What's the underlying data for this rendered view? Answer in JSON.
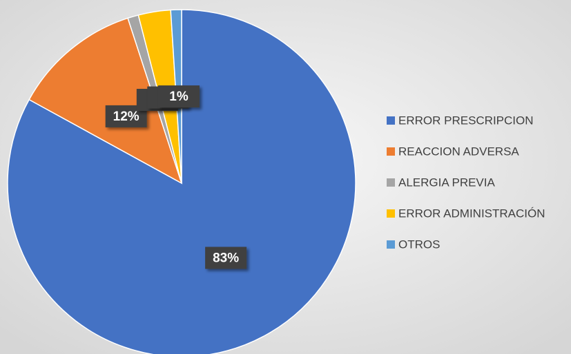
{
  "chart_data": {
    "type": "pie",
    "categories": [
      "ERROR PRESCRIPCION",
      "REACCION ADVERSA",
      "ALERGIA PREVIA",
      "ERROR ADMINISTRACIÓN",
      "OTROS"
    ],
    "values": [
      83,
      12,
      1,
      3,
      1
    ],
    "value_labels": [
      "83%",
      "12%",
      "1%",
      "3%",
      "1%"
    ],
    "colors": [
      "#4472c4",
      "#ed7d31",
      "#a5a5a5",
      "#ffc000",
      "#5b9bd5"
    ],
    "legend": "right"
  }
}
